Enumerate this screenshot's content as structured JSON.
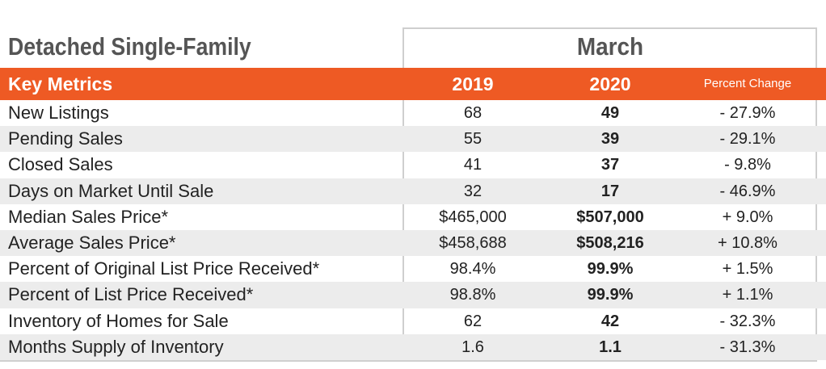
{
  "section_title": "Detached Single-Family",
  "period_title": "March",
  "header": {
    "metric": "Key Metrics",
    "year_a": "2019",
    "year_b": "2020",
    "percent_change": "Percent Change"
  },
  "rows": [
    {
      "metric": "New Listings",
      "y2019": "68",
      "y2020": "49",
      "pct": "- 27.9%"
    },
    {
      "metric": "Pending Sales",
      "y2019": "55",
      "y2020": "39",
      "pct": "- 29.1%"
    },
    {
      "metric": "Closed Sales",
      "y2019": "41",
      "y2020": "37",
      "pct": "- 9.8%"
    },
    {
      "metric": "Days on Market Until Sale",
      "y2019": "32",
      "y2020": "17",
      "pct": "- 46.9%"
    },
    {
      "metric": "Median Sales Price*",
      "y2019": "$465,000",
      "y2020": "$507,000",
      "pct": "+ 9.0%"
    },
    {
      "metric": "Average Sales Price*",
      "y2019": "$458,688",
      "y2020": "$508,216",
      "pct": "+ 10.8%"
    },
    {
      "metric": "Percent of Original List Price Received*",
      "y2019": "98.4%",
      "y2020": "99.9%",
      "pct": "+ 1.5%"
    },
    {
      "metric": "Percent of List Price Received*",
      "y2019": "98.8%",
      "y2020": "99.9%",
      "pct": "+ 1.1%"
    },
    {
      "metric": "Inventory of Homes for Sale",
      "y2019": "62",
      "y2020": "42",
      "pct": "- 32.3%"
    },
    {
      "metric": "Months Supply of Inventory",
      "y2019": "1.6",
      "y2020": "1.1",
      "pct": "- 31.3%"
    }
  ],
  "colors": {
    "header_band": "#ee5a24",
    "row_stripe": "#ececec",
    "title_text": "#555555"
  }
}
